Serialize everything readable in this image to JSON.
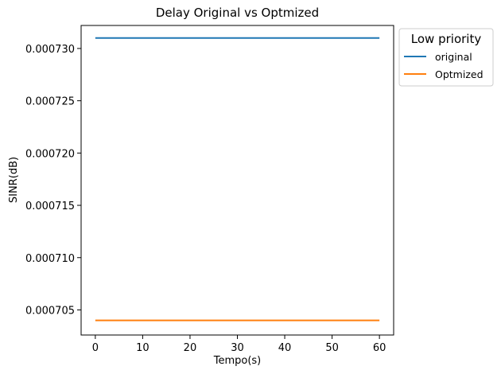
{
  "chart_data": {
    "type": "line",
    "title": "Delay Original vs Optmized",
    "xlabel": "Tempo(s)",
    "ylabel": "SINR(dB)",
    "xlim": [
      -3,
      63
    ],
    "ylim": [
      0.0007026,
      0.0007322
    ],
    "xticks": [
      0,
      10,
      20,
      30,
      40,
      50,
      60
    ],
    "yticks": [
      0.000705,
      0.00071,
      0.000715,
      0.00072,
      0.000725,
      0.00073
    ],
    "ytick_labels": [
      "0.000705",
      "0.000710",
      "0.000715",
      "0.000720",
      "0.000725",
      "0.000730"
    ],
    "grid": false,
    "legend": {
      "title": "Low priority",
      "placement": "outside-top-right"
    },
    "series": [
      {
        "name": "original",
        "color": "#1f77b4",
        "x": [
          0,
          60
        ],
        "y": [
          0.000731,
          0.000731
        ]
      },
      {
        "name": "Optmized",
        "color": "#ff7f0e",
        "x": [
          0,
          60
        ],
        "y": [
          0.000704,
          0.000704
        ]
      }
    ]
  }
}
